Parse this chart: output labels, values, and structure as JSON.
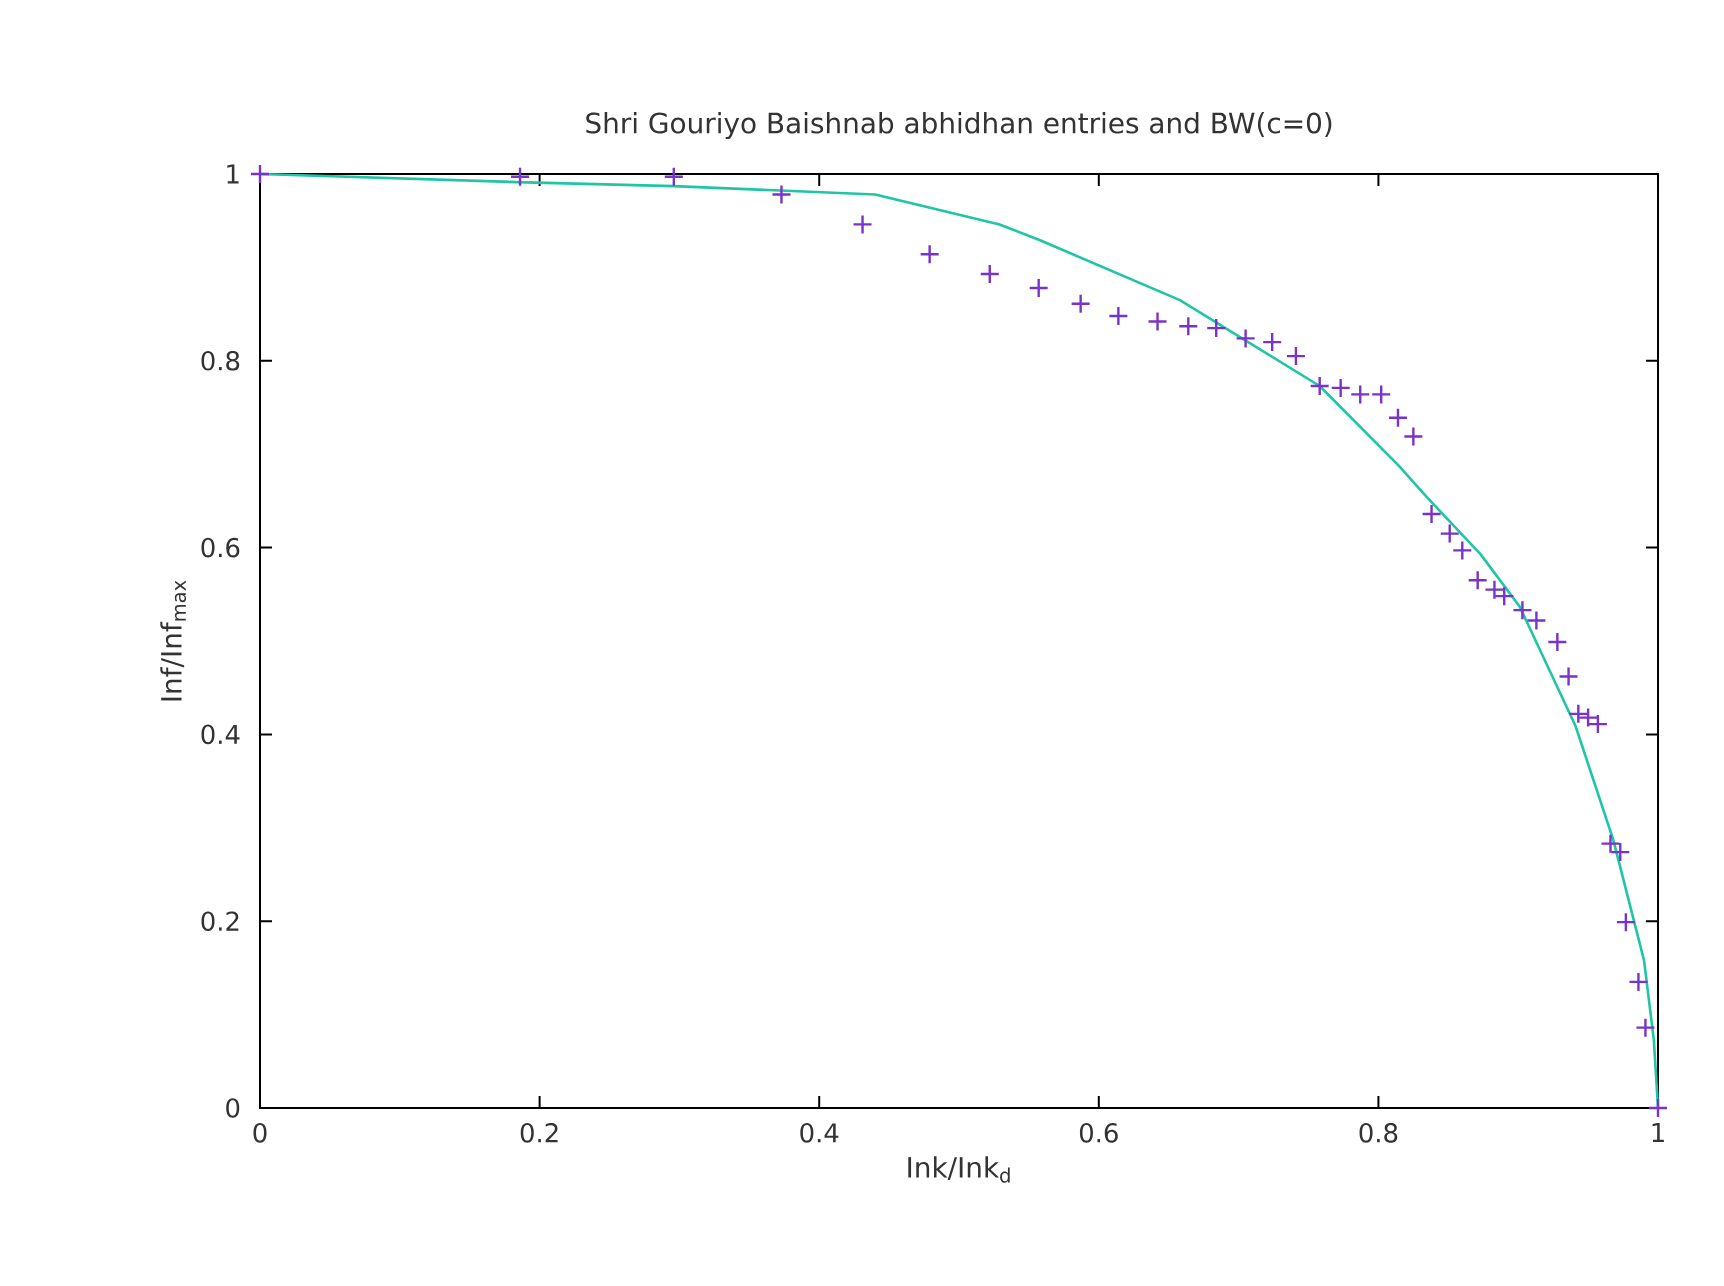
{
  "chart_data": {
    "type": "scatter",
    "title": "Shri Gouriyo Baishnab abhidhan entries and BW(c=0)",
    "xlabel": "Ink/Ink$_{d}$",
    "ylabel": "Inf/Inf$_{max}$",
    "xlim": [
      0,
      1
    ],
    "ylim": [
      0,
      1
    ],
    "xticks": [
      0,
      0.2,
      0.4,
      0.6,
      0.8,
      1
    ],
    "yticks": [
      0,
      0.2,
      0.4,
      0.6,
      0.8,
      1
    ],
    "grid": false,
    "series": [
      {
        "marker": "cross",
        "color": "#7a33c8",
        "x": [
          0,
          0.186,
          0.296,
          0.373,
          0.431,
          0.479,
          0.522,
          0.557,
          0.587,
          0.614,
          0.642,
          0.664,
          0.684,
          0.705,
          0.724,
          0.741,
          0.758,
          0.773,
          0.787,
          0.802,
          0.814,
          0.825,
          0.838,
          0.851,
          0.86,
          0.871,
          0.883,
          0.89,
          0.903,
          0.913,
          0.928,
          0.936,
          0.943,
          0.95,
          0.957,
          0.966,
          0.973,
          0.977,
          0.986,
          0.991,
          1
        ],
        "values": [
          1,
          0.997,
          0.997,
          0.978,
          0.946,
          0.914,
          0.893,
          0.878,
          0.861,
          0.848,
          0.842,
          0.837,
          0.835,
          0.824,
          0.82,
          0.805,
          0.773,
          0.771,
          0.764,
          0.764,
          0.739,
          0.719,
          0.636,
          0.615,
          0.597,
          0.565,
          0.555,
          0.548,
          0.533,
          0.522,
          0.499,
          0.462,
          0.422,
          0.418,
          0.411,
          0.283,
          0.274,
          0.199,
          0.135,
          0.086,
          0
        ]
      },
      {
        "type": "line",
        "marker": "none",
        "line_style": "solid",
        "color": "#1fc5a5",
        "x": [
          0,
          0.19,
          0.296,
          0.44,
          0.529,
          0.558,
          0.658,
          0.758,
          0.815,
          0.834,
          0.873,
          0.901,
          0.941,
          0.968,
          0.99,
          0.997,
          1
        ],
        "values": [
          1,
          0.991,
          0.987,
          0.978,
          0.946,
          0.929,
          0.865,
          0.773,
          0.687,
          0.655,
          0.593,
          0.537,
          0.409,
          0.287,
          0.158,
          0.073,
          0
        ]
      }
    ]
  }
}
